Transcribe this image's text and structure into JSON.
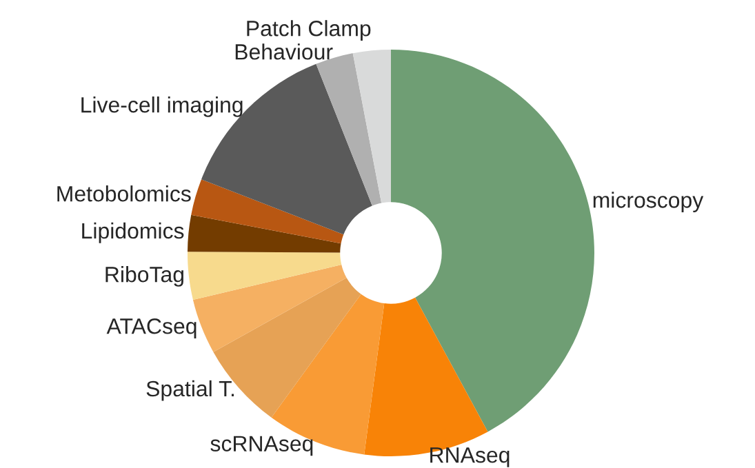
{
  "chart_data": {
    "type": "donut",
    "categories": [
      "microscopy",
      "RNAseq",
      "scRNAseq",
      "Spatial T.",
      "ATACseq",
      "RiboTag",
      "Lipidomics",
      "Metobolomics",
      "Live-cell imaging",
      "Behaviour",
      "Patch Clamp"
    ],
    "values": [
      42.1,
      10,
      7.9,
      6.9,
      4.4,
      3.8,
      2.9,
      2.9,
      13.1,
      3.0,
      3.0
    ],
    "colors": [
      "#6f9e74",
      "#f88307",
      "#f99b35",
      "#e6a255",
      "#f5b062",
      "#f7da8d",
      "#733c00",
      "#b85712",
      "#5a5a5a",
      "#b0b0b0",
      "#d9dada"
    ],
    "legend": false
  }
}
